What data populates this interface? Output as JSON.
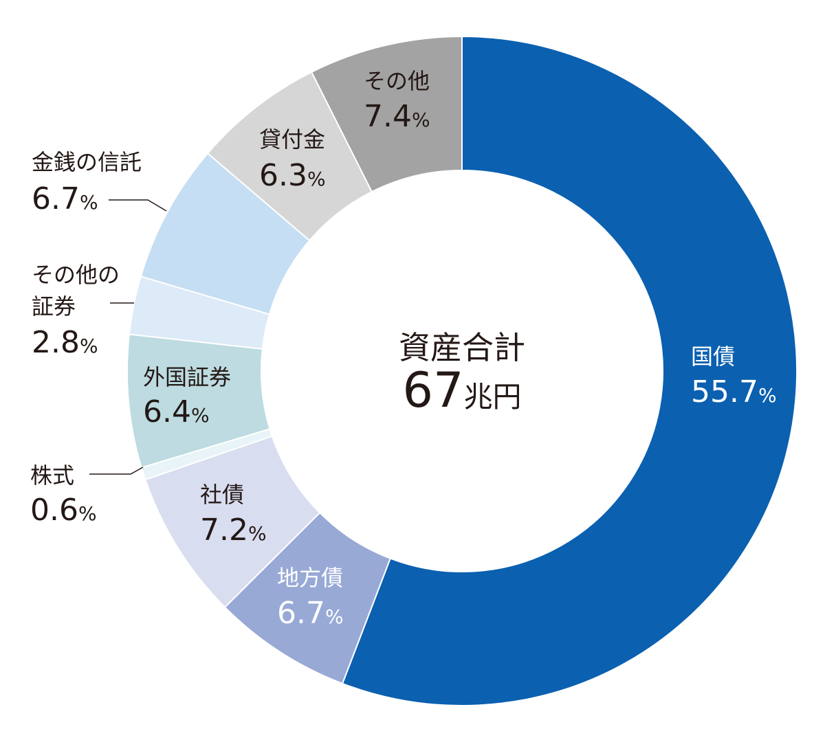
{
  "chart_data": {
    "type": "pie",
    "donut": true,
    "start": "top-center, clockwise",
    "center_title": "資産合計",
    "center_value": "67",
    "center_unit": "兆円",
    "percent_sign": "%",
    "slices": [
      {
        "key": "kokusai",
        "name": "国債",
        "value": 55.7,
        "label": "55.7",
        "color": "#0b60b0",
        "text_color": "#ffffff"
      },
      {
        "key": "chihousai",
        "name": "地方債",
        "value": 6.7,
        "label": "6.7",
        "color": "#98a9d6",
        "text_color": "#ffffff"
      },
      {
        "key": "shasai",
        "name": "社債",
        "value": 7.2,
        "label": "7.2",
        "color": "#d9ddf0",
        "text_color": "#231815"
      },
      {
        "key": "kabushiki",
        "name": "株式",
        "value": 0.6,
        "label": "0.6",
        "color": "#e8f4f7",
        "text_color": "#231815"
      },
      {
        "key": "gaikoku",
        "name": "外国証券",
        "value": 6.4,
        "label": "6.4",
        "color": "#bddbe0",
        "text_color": "#231815"
      },
      {
        "key": "sonota_shouken",
        "name": "その他の証券",
        "name_lines": [
          "その他の",
          "証券"
        ],
        "value": 2.8,
        "label": "2.8",
        "color": "#ddeaf7",
        "text_color": "#231815"
      },
      {
        "key": "kinsen",
        "name": "金銭の信託",
        "value": 6.7,
        "label": "6.7",
        "color": "#c5def3",
        "text_color": "#231815"
      },
      {
        "key": "kashitsuke",
        "name": "貸付金",
        "value": 6.3,
        "label": "6.3",
        "color": "#d6d6d6",
        "text_color": "#231815"
      },
      {
        "key": "sonota",
        "name": "その他",
        "value": 7.4,
        "label": "7.4",
        "color": "#a3a3a3",
        "text_color": "#231815"
      }
    ],
    "colors": {
      "center_text": "#231815",
      "leader_line": "#231815",
      "gap": "#ffffff"
    }
  }
}
